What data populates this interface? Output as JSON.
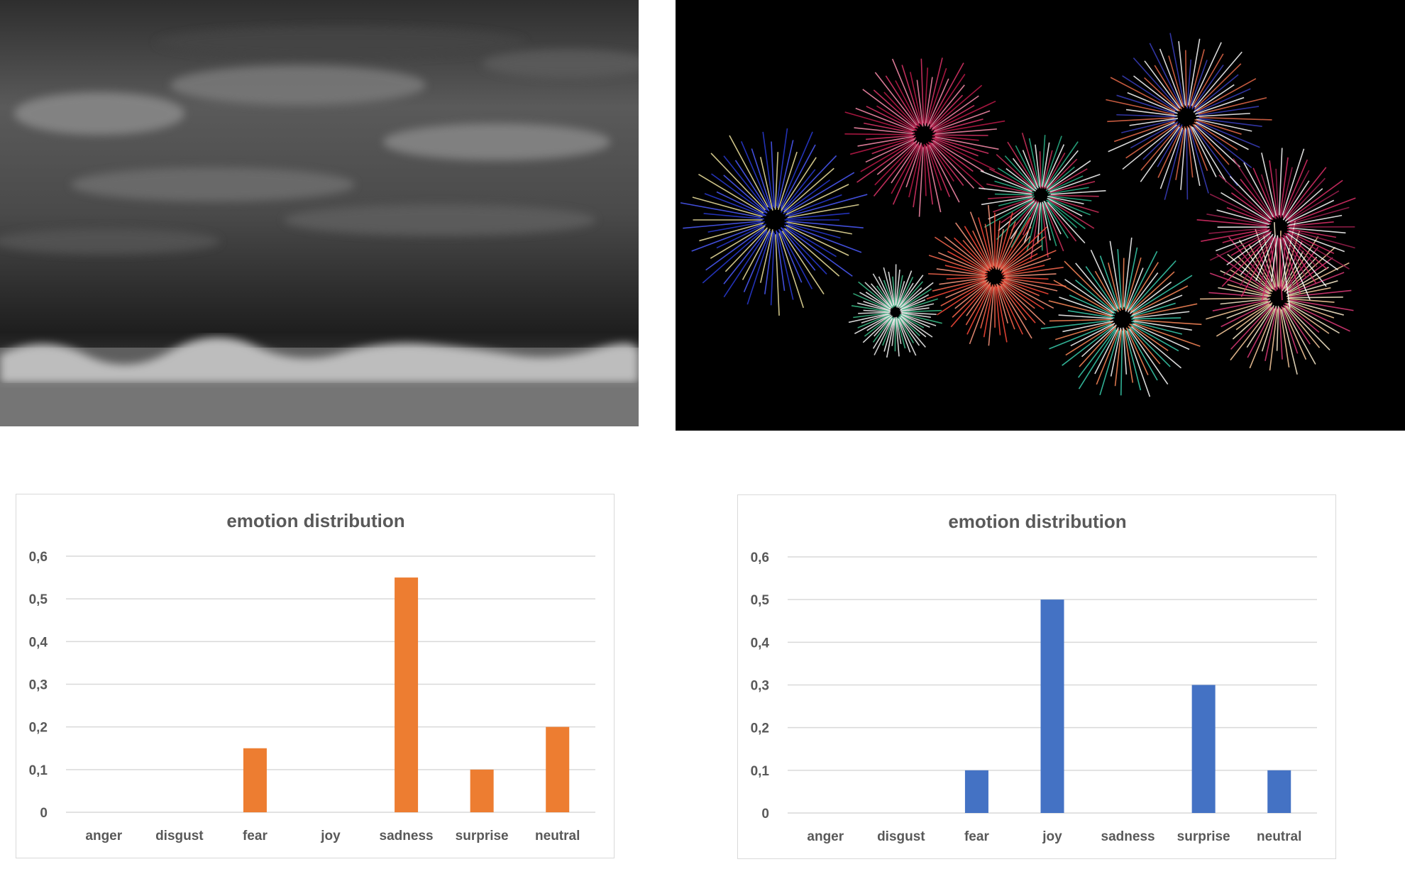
{
  "colors": {
    "chart1_bar": "#ED7D31",
    "chart2_bar": "#4472C4",
    "grid": "#D9D9D9",
    "text": "#595959"
  },
  "images": [
    {
      "name": "storm-clouds-over-sea-photo",
      "depicts": "stormy sky over breaking waves"
    },
    {
      "name": "fireworks-photo",
      "depicts": "fireworks bursts in night sky"
    }
  ],
  "chart_data": [
    {
      "type": "bar",
      "title": "emotion distribution",
      "categories": [
        "anger",
        "disgust",
        "fear",
        "joy",
        "sadness",
        "surprise",
        "neutral"
      ],
      "values": [
        0,
        0,
        0.15,
        0,
        0.55,
        0.1,
        0.2
      ],
      "ylim": [
        0,
        0.6
      ],
      "yticks": [
        "0",
        "0,1",
        "0,2",
        "0,3",
        "0,4",
        "0,5",
        "0,6"
      ],
      "grid": true,
      "color": "#ED7D31"
    },
    {
      "type": "bar",
      "title": "emotion distribution",
      "categories": [
        "anger",
        "disgust",
        "fear",
        "joy",
        "sadness",
        "surprise",
        "neutral"
      ],
      "values": [
        0,
        0,
        0.1,
        0.5,
        0,
        0.3,
        0.1
      ],
      "ylim": [
        0,
        0.6
      ],
      "yticks": [
        "0",
        "0,1",
        "0,2",
        "0,3",
        "0,4",
        "0,5",
        "0,6"
      ],
      "grid": true,
      "color": "#4472C4"
    }
  ]
}
